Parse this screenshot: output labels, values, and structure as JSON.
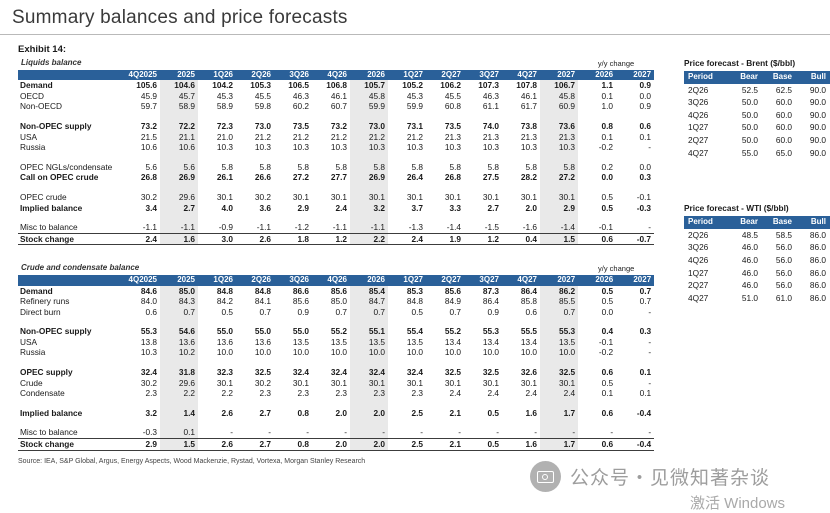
{
  "page": {
    "title": "Summary balances and price forecasts",
    "exhibit": "Exhibit 14:",
    "source": "Source: IEA, S&P Global, Argus, Energy Aspects, Wood Mackenzie, Rystad, Vortexa, Morgan Stanley Research"
  },
  "colors": {
    "header_blue": "#2a6099",
    "shade_gray": "#e9e9e9"
  },
  "liquids": {
    "label": "Liquids balance",
    "yy_label": "y/y change",
    "columns": [
      "4Q2025",
      "2025",
      "1Q26",
      "2Q26",
      "3Q26",
      "4Q26",
      "2026",
      "1Q27",
      "2Q27",
      "3Q27",
      "4Q27",
      "2027",
      "2026",
      "2027"
    ],
    "rows": [
      {
        "label": "Demand",
        "bold": true,
        "values": [
          "105.6",
          "104.6",
          "104.2",
          "105.3",
          "106.5",
          "106.8",
          "105.7",
          "105.2",
          "106.2",
          "107.3",
          "107.8",
          "106.7",
          "1.1",
          "0.9"
        ]
      },
      {
        "label": "OECD",
        "values": [
          "45.9",
          "45.7",
          "45.3",
          "45.5",
          "46.3",
          "46.1",
          "45.8",
          "45.3",
          "45.5",
          "46.3",
          "46.1",
          "45.8",
          "0.1",
          "0.0"
        ]
      },
      {
        "label": "Non-OECD",
        "values": [
          "59.7",
          "58.9",
          "58.9",
          "59.8",
          "60.2",
          "60.7",
          "59.9",
          "59.9",
          "60.8",
          "61.1",
          "61.7",
          "60.9",
          "1.0",
          "0.9"
        ]
      },
      {
        "spacer": true
      },
      {
        "label": "Non-OPEC supply",
        "bold": true,
        "values": [
          "73.2",
          "72.2",
          "72.3",
          "73.0",
          "73.5",
          "73.2",
          "73.0",
          "73.1",
          "73.5",
          "74.0",
          "73.8",
          "73.6",
          "0.8",
          "0.6"
        ]
      },
      {
        "label": "USA",
        "values": [
          "21.5",
          "21.1",
          "21.0",
          "21.2",
          "21.2",
          "21.2",
          "21.2",
          "21.2",
          "21.3",
          "21.3",
          "21.3",
          "21.3",
          "0.1",
          "0.1"
        ]
      },
      {
        "label": "Russia",
        "values": [
          "10.6",
          "10.6",
          "10.3",
          "10.3",
          "10.3",
          "10.3",
          "10.3",
          "10.3",
          "10.3",
          "10.3",
          "10.3",
          "10.3",
          "-0.2",
          "-"
        ]
      },
      {
        "spacer": true
      },
      {
        "label": "OPEC NGLs/condensate",
        "values": [
          "5.6",
          "5.6",
          "5.8",
          "5.8",
          "5.8",
          "5.8",
          "5.8",
          "5.8",
          "5.8",
          "5.8",
          "5.8",
          "5.8",
          "0.2",
          "0.0"
        ]
      },
      {
        "label": "Call on OPEC crude",
        "bold": true,
        "values": [
          "26.8",
          "26.9",
          "26.1",
          "26.6",
          "27.2",
          "27.7",
          "26.9",
          "26.4",
          "26.8",
          "27.5",
          "28.2",
          "27.2",
          "0.0",
          "0.3"
        ]
      },
      {
        "spacer": true
      },
      {
        "label": "OPEC crude",
        "values": [
          "30.2",
          "29.6",
          "30.1",
          "30.2",
          "30.1",
          "30.1",
          "30.1",
          "30.1",
          "30.1",
          "30.1",
          "30.1",
          "30.1",
          "0.5",
          "-0.1"
        ]
      },
      {
        "label": "Implied balance",
        "bold": true,
        "values": [
          "3.4",
          "2.7",
          "4.0",
          "3.6",
          "2.9",
          "2.4",
          "3.2",
          "3.7",
          "3.3",
          "2.7",
          "2.0",
          "2.9",
          "0.5",
          "-0.3"
        ]
      },
      {
        "spacer": true
      },
      {
        "label": "Misc to balance",
        "values": [
          "-1.1",
          "-1.1",
          "-0.9",
          "-1.1",
          "-1.2",
          "-1.1",
          "-1.1",
          "-1.3",
          "-1.4",
          "-1.5",
          "-1.6",
          "-1.4",
          "-0.1",
          "-"
        ]
      },
      {
        "label": "Stock change",
        "bold": true,
        "rule": true,
        "values": [
          "2.4",
          "1.6",
          "3.0",
          "2.6",
          "1.8",
          "1.2",
          "2.2",
          "2.4",
          "1.9",
          "1.2",
          "0.4",
          "1.5",
          "0.6",
          "-0.7"
        ]
      }
    ]
  },
  "crude": {
    "label": "Crude and condensate balance",
    "yy_label": "y/y change",
    "columns": [
      "4Q2025",
      "2025",
      "1Q26",
      "2Q26",
      "3Q26",
      "4Q26",
      "2026",
      "1Q27",
      "2Q27",
      "3Q27",
      "4Q27",
      "2027",
      "2026",
      "2027"
    ],
    "rows": [
      {
        "label": "Demand",
        "bold": true,
        "values": [
          "84.6",
          "85.0",
          "84.8",
          "84.8",
          "86.6",
          "85.6",
          "85.4",
          "85.3",
          "85.6",
          "87.3",
          "86.4",
          "86.2",
          "0.5",
          "0.7"
        ]
      },
      {
        "label": "Refinery runs",
        "values": [
          "84.0",
          "84.3",
          "84.2",
          "84.1",
          "85.6",
          "85.0",
          "84.7",
          "84.8",
          "84.9",
          "86.4",
          "85.8",
          "85.5",
          "0.5",
          "0.7"
        ]
      },
      {
        "label": "Direct burn",
        "values": [
          "0.6",
          "0.7",
          "0.5",
          "0.7",
          "0.9",
          "0.7",
          "0.7",
          "0.5",
          "0.7",
          "0.9",
          "0.6",
          "0.7",
          "0.0",
          "-"
        ]
      },
      {
        "spacer": true
      },
      {
        "label": "Non-OPEC supply",
        "bold": true,
        "values": [
          "55.3",
          "54.6",
          "55.0",
          "55.0",
          "55.0",
          "55.2",
          "55.1",
          "55.4",
          "55.2",
          "55.3",
          "55.5",
          "55.3",
          "0.4",
          "0.3"
        ]
      },
      {
        "label": "USA",
        "values": [
          "13.8",
          "13.6",
          "13.6",
          "13.6",
          "13.5",
          "13.5",
          "13.5",
          "13.5",
          "13.4",
          "13.4",
          "13.4",
          "13.5",
          "-0.1",
          "-"
        ]
      },
      {
        "label": "Russia",
        "values": [
          "10.3",
          "10.2",
          "10.0",
          "10.0",
          "10.0",
          "10.0",
          "10.0",
          "10.0",
          "10.0",
          "10.0",
          "10.0",
          "10.0",
          "-0.2",
          "-"
        ]
      },
      {
        "spacer": true
      },
      {
        "label": "OPEC supply",
        "bold": true,
        "values": [
          "32.4",
          "31.8",
          "32.3",
          "32.5",
          "32.4",
          "32.4",
          "32.4",
          "32.4",
          "32.5",
          "32.5",
          "32.6",
          "32.5",
          "0.6",
          "0.1"
        ]
      },
      {
        "label": "Crude",
        "values": [
          "30.2",
          "29.6",
          "30.1",
          "30.2",
          "30.1",
          "30.1",
          "30.1",
          "30.1",
          "30.1",
          "30.1",
          "30.1",
          "30.1",
          "0.5",
          "-"
        ]
      },
      {
        "label": "Condensate",
        "values": [
          "2.3",
          "2.2",
          "2.2",
          "2.3",
          "2.3",
          "2.3",
          "2.3",
          "2.3",
          "2.4",
          "2.4",
          "2.4",
          "2.4",
          "0.1",
          "0.1"
        ]
      },
      {
        "spacer": true
      },
      {
        "label": "Implied balance",
        "bold": true,
        "values": [
          "3.2",
          "1.4",
          "2.6",
          "2.7",
          "0.8",
          "2.0",
          "2.0",
          "2.5",
          "2.1",
          "0.5",
          "1.6",
          "1.7",
          "0.6",
          "-0.4"
        ]
      },
      {
        "spacer": true
      },
      {
        "label": "Misc to balance",
        "values": [
          "-0.3",
          "0.1",
          "-",
          "-",
          "-",
          "-",
          "-",
          "-",
          "-",
          "-",
          "-",
          "-",
          "-",
          "-"
        ]
      },
      {
        "label": "Stock change",
        "bold": true,
        "rule": true,
        "values": [
          "2.9",
          "1.5",
          "2.6",
          "2.7",
          "0.8",
          "2.0",
          "2.0",
          "2.5",
          "2.1",
          "0.5",
          "1.6",
          "1.7",
          "0.6",
          "-0.4"
        ]
      }
    ]
  },
  "brent": {
    "title": "Price forecast - Brent ($/bbl)",
    "columns": [
      "Period",
      "Bear",
      "Base",
      "Bull"
    ],
    "rows": [
      [
        "2Q26",
        "52.5",
        "62.5",
        "90.0"
      ],
      [
        "3Q26",
        "50.0",
        "60.0",
        "90.0"
      ],
      [
        "4Q26",
        "50.0",
        "60.0",
        "90.0"
      ],
      [
        "1Q27",
        "50.0",
        "60.0",
        "90.0"
      ],
      [
        "2Q27",
        "50.0",
        "60.0",
        "90.0"
      ],
      [
        "4Q27",
        "55.0",
        "65.0",
        "90.0"
      ]
    ]
  },
  "wti": {
    "title": "Price forecast - WTI ($/bbl)",
    "columns": [
      "Period",
      "Bear",
      "Base",
      "Bull"
    ],
    "rows": [
      [
        "2Q26",
        "48.5",
        "58.5",
        "86.0"
      ],
      [
        "3Q26",
        "46.0",
        "56.0",
        "86.0"
      ],
      [
        "4Q26",
        "46.0",
        "56.0",
        "86.0"
      ],
      [
        "1Q27",
        "46.0",
        "56.0",
        "86.0"
      ],
      [
        "2Q27",
        "46.0",
        "56.0",
        "86.0"
      ],
      [
        "4Q27",
        "51.0",
        "61.0",
        "86.0"
      ]
    ]
  },
  "watermark": {
    "text": "公众号・见微知著杂谈",
    "activation": "激活 Windows"
  }
}
